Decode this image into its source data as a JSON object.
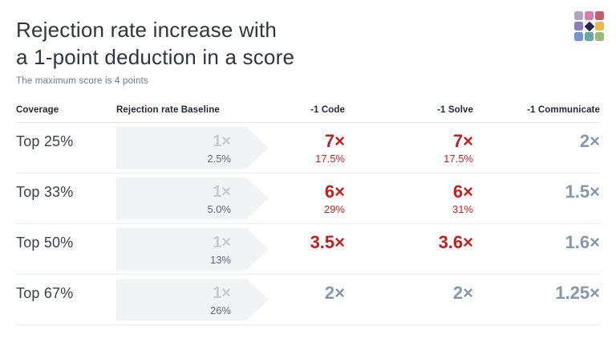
{
  "header": {
    "title_line1": "Rejection rate increase with",
    "title_line2": "a 1-point deduction in a score",
    "subtitle": "The maximum score is 4 points"
  },
  "logo": {
    "cell_colors": [
      "#b0a3c0",
      "#d77fa2",
      "#c2606d",
      "#8b7cc2",
      "center",
      "#e7b94e",
      "#7393cd",
      "#68a7a2",
      "#9cba75"
    ],
    "center_diamond_color": "#2a2550"
  },
  "theme": {
    "increase_color": "#c51d1d",
    "mild_increase_color": "#8398ad",
    "baseline_text_color": "#c7cacf",
    "arrow_bg": "#f1f3f6"
  },
  "table": {
    "columns": [
      "Coverage",
      "Rejection rate Baseline",
      "-1 Code",
      "-1 Solve",
      "-1 Communicate"
    ],
    "rows": [
      {
        "coverage": "Top 25%",
        "baseline": {
          "mult": "1×",
          "pct": "2.5%"
        },
        "code": {
          "mult": "7×",
          "pct": "17.5%",
          "color": "red"
        },
        "solve": {
          "mult": "7×",
          "pct": "17.5%",
          "color": "red"
        },
        "communicate": {
          "mult": "2×",
          "pct": "",
          "color": "blue"
        }
      },
      {
        "coverage": "Top 33%",
        "baseline": {
          "mult": "1×",
          "pct": "5.0%"
        },
        "code": {
          "mult": "6×",
          "pct": "29%",
          "color": "red"
        },
        "solve": {
          "mult": "6×",
          "pct": "31%",
          "color": "red"
        },
        "communicate": {
          "mult": "1.5×",
          "pct": "",
          "color": "blue"
        }
      },
      {
        "coverage": "Top 50%",
        "baseline": {
          "mult": "1×",
          "pct": "13%"
        },
        "code": {
          "mult": "3.5×",
          "pct": "",
          "color": "red"
        },
        "solve": {
          "mult": "3.6×",
          "pct": "",
          "color": "red"
        },
        "communicate": {
          "mult": "1.6×",
          "pct": "",
          "color": "blue"
        }
      },
      {
        "coverage": "Top 67%",
        "baseline": {
          "mult": "1×",
          "pct": "26%"
        },
        "code": {
          "mult": "2×",
          "pct": "",
          "color": "blue"
        },
        "solve": {
          "mult": "2×",
          "pct": "",
          "color": "blue"
        },
        "communicate": {
          "mult": "1.25×",
          "pct": "",
          "color": "blue"
        }
      }
    ]
  },
  "chart_data": {
    "type": "table",
    "title": "Rejection rate increase with a 1-point deduction in a score",
    "subtitle": "The maximum score is 4 points",
    "columns": [
      "Coverage",
      "Rejection rate Baseline",
      "-1 Code",
      "-1 Solve",
      "-1 Communicate"
    ],
    "rows": [
      {
        "coverage": "Top 25%",
        "baseline_mult": 1,
        "baseline_rate_pct": 2.5,
        "code_mult": 7,
        "code_rate_pct": 17.5,
        "solve_mult": 7,
        "solve_rate_pct": 17.5,
        "communicate_mult": 2
      },
      {
        "coverage": "Top 33%",
        "baseline_mult": 1,
        "baseline_rate_pct": 5.0,
        "code_mult": 6,
        "code_rate_pct": 29,
        "solve_mult": 6,
        "solve_rate_pct": 31,
        "communicate_mult": 1.5
      },
      {
        "coverage": "Top 50%",
        "baseline_mult": 1,
        "baseline_rate_pct": 13,
        "code_mult": 3.5,
        "code_rate_pct": null,
        "solve_mult": 3.6,
        "solve_rate_pct": null,
        "communicate_mult": 1.6
      },
      {
        "coverage": "Top 67%",
        "baseline_mult": 1,
        "baseline_rate_pct": 26,
        "code_mult": 2,
        "code_rate_pct": null,
        "solve_mult": 2,
        "solve_rate_pct": null,
        "communicate_mult": 1.25
      }
    ],
    "legend_position": "none",
    "grid": "horizontal-dividers"
  }
}
